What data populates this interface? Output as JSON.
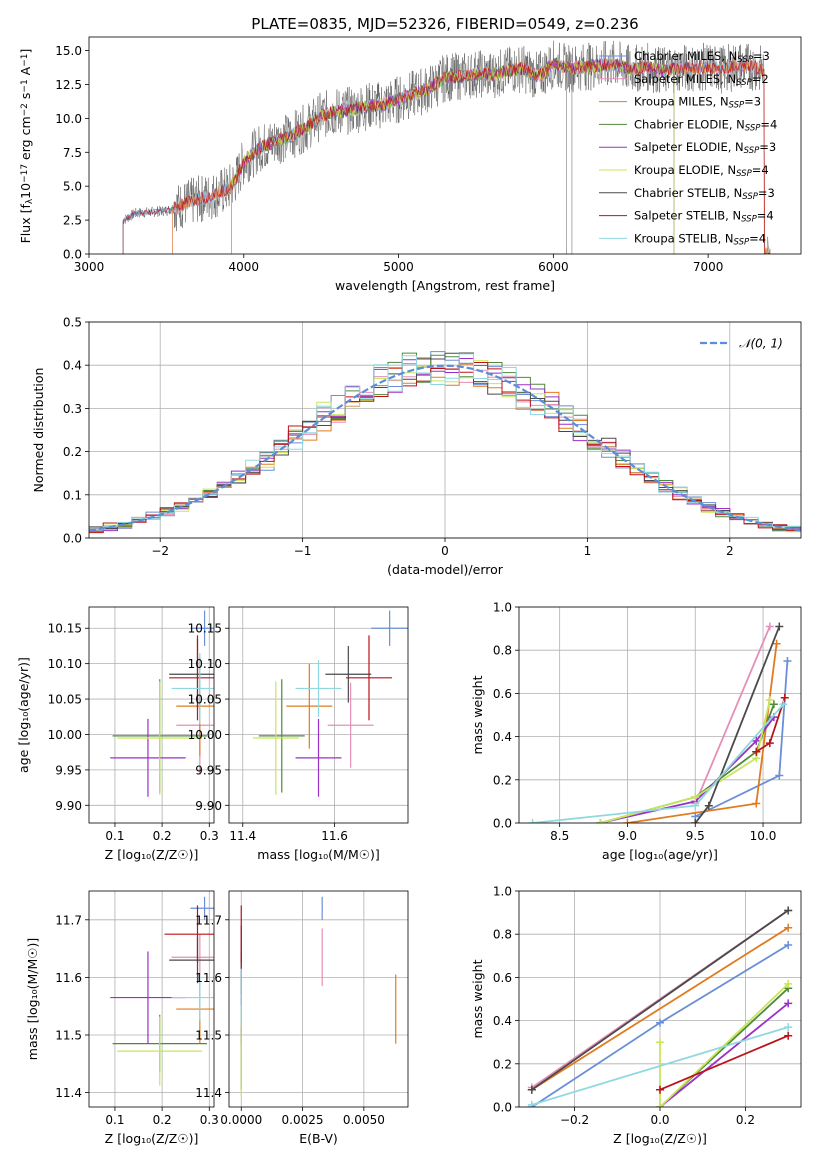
{
  "figure_title": "PLATE=0835, MJD=52326, FIBERID=0549, z=0.236",
  "colors": {
    "chabrier_miles": "#6a8fd6",
    "salpeter_miles": "#e58fb8",
    "kroupa_miles": "#e07b1f",
    "chabrier_elodie": "#4f8a3a",
    "salpeter_elodie": "#9b30c8",
    "kroupa_elodie": "#c8e65a",
    "chabrier_stelib": "#4a4a4a",
    "salpeter_stelib": "#b8141a",
    "kroupa_stelib": "#8fd8e0",
    "grid": "#b0b0b0",
    "normal_curve": "#5b8dd9"
  },
  "legend_spectrum": [
    {
      "name": "Chabrier MILES",
      "nssp": "3",
      "key": "chabrier_miles"
    },
    {
      "name": "Salpeter MILES",
      "nssp": "2",
      "key": "salpeter_miles"
    },
    {
      "name": "Kroupa MILES",
      "nssp": "3",
      "key": "kroupa_miles"
    },
    {
      "name": "Chabrier ELODIE",
      "nssp": "4",
      "key": "chabrier_elodie"
    },
    {
      "name": "Salpeter ELODIE",
      "nssp": "3",
      "key": "salpeter_elodie"
    },
    {
      "name": "Kroupa ELODIE",
      "nssp": "4",
      "key": "kroupa_elodie"
    },
    {
      "name": "Chabrier STELIB",
      "nssp": "3",
      "key": "chabrier_stelib"
    },
    {
      "name": "Salpeter STELIB",
      "nssp": "4",
      "key": "salpeter_stelib"
    },
    {
      "name": "Kroupa STELIB",
      "nssp": "4",
      "key": "kroupa_stelib"
    }
  ],
  "nssp_prefix": "N",
  "nssp_sub": "SSP",
  "chart_data": [
    {
      "id": "spectrum",
      "type": "line",
      "xlabel": "wavelength [Angstrom, rest frame]",
      "ylabel": "Flux [f",
      "xlim": [
        3000,
        7600
      ],
      "ylim": [
        0,
        16
      ],
      "xticks": [
        3000,
        4000,
        5000,
        6000,
        7000
      ],
      "yticks": [
        0.0,
        2.5,
        5.0,
        7.5,
        10.0,
        12.5,
        15.0
      ],
      "grid": false,
      "legend": "top-right",
      "spectrum_envelope": {
        "x": [
          3220,
          3300,
          3400,
          3500,
          3600,
          3700,
          3800,
          3900,
          3950,
          4000,
          4100,
          4200,
          4300,
          4400,
          4500,
          4600,
          4700,
          4800,
          4900,
          5000,
          5100,
          5200,
          5300,
          5400,
          5500,
          5600,
          5700,
          5800,
          5900,
          6000,
          6100,
          6200,
          6300,
          6400,
          6500,
          6600,
          6700,
          6800,
          6900,
          7000,
          7100,
          7200,
          7300,
          7360
        ],
        "y": [
          2.5,
          3.0,
          3.1,
          3.2,
          3.6,
          4.0,
          4.3,
          4.8,
          5.5,
          6.8,
          7.8,
          8.3,
          8.7,
          9.3,
          10.2,
          10.5,
          10.6,
          10.9,
          11.0,
          11.4,
          11.8,
          12.2,
          13.0,
          13.1,
          13.3,
          13.2,
          13.5,
          13.7,
          13.1,
          14.0,
          13.7,
          13.8,
          13.9,
          14.0,
          13.6,
          13.8,
          13.5,
          13.7,
          13.7,
          13.8,
          13.6,
          13.9,
          13.8,
          13.5
        ]
      },
      "coverage_start": {
        "chabrier_miles": 3220,
        "salpeter_miles": 3540,
        "kroupa_miles": 3540,
        "chabrier_elodie": 3920,
        "salpeter_elodie": 3920,
        "kroupa_elodie": 3920,
        "chabrier_stelib": 3220,
        "salpeter_stelib": 3220,
        "kroupa_stelib": 3220
      },
      "coverage_end": {
        "chabrier_miles": 7400,
        "salpeter_miles": 7400,
        "kroupa_miles": 7400,
        "chabrier_elodie": 6780,
        "salpeter_elodie": 6780,
        "kroupa_elodie": 6780,
        "chabrier_stelib": 7400,
        "salpeter_stelib": 7400,
        "kroupa_stelib": 7400
      }
    },
    {
      "id": "residuals",
      "type": "line",
      "xlabel": "(data-model)/error",
      "ylabel": "Normed distribution",
      "xlim": [
        -2.5,
        2.5
      ],
      "ylim": [
        0,
        0.5
      ],
      "xticks": [
        -2,
        -1,
        0,
        1,
        2
      ],
      "yticks": [
        0.0,
        0.1,
        0.2,
        0.3,
        0.4,
        0.5
      ],
      "grid": true,
      "legend": "top-right",
      "legend_label": "𝒩(0, 1)",
      "bin_width": 0.1,
      "bin_start": -2.5
    },
    {
      "id": "age_vs_Z",
      "type": "scatter",
      "xlabel": "Z [log₁₀(Z/Z☉)]",
      "ylabel": "age  [log₁₀(age/yr)]",
      "xlim": [
        0.045,
        0.31
      ],
      "ylim": [
        9.875,
        10.18
      ],
      "xticks": [
        0.1,
        0.2,
        0.3
      ],
      "yticks": [
        9.9,
        9.95,
        10.0,
        10.05,
        10.1,
        10.15
      ],
      "grid": true,
      "points": [
        {
          "key": "chabrier_miles",
          "x": 0.29,
          "y": 10.15,
          "xerr": 0.03,
          "yerr": 0.025
        },
        {
          "key": "salpeter_miles",
          "x": 0.28,
          "y": 10.013,
          "xerr": 0.05,
          "yerr": 0.07
        },
        {
          "key": "kroupa_miles",
          "x": 0.28,
          "y": 10.04,
          "xerr": 0.05,
          "yerr": 0.07
        },
        {
          "key": "chabrier_elodie",
          "x": 0.195,
          "y": 9.998,
          "xerr": 0.1,
          "yerr": 0.08
        },
        {
          "key": "salpeter_elodie",
          "x": 0.17,
          "y": 9.967,
          "xerr": 0.08,
          "yerr": 0.055
        },
        {
          "key": "kroupa_elodie",
          "x": 0.195,
          "y": 9.995,
          "xerr": 0.09,
          "yerr": 0.08
        },
        {
          "key": "chabrier_stelib",
          "x": 0.275,
          "y": 10.085,
          "xerr": 0.06,
          "yerr": 0.05
        },
        {
          "key": "salpeter_stelib",
          "x": 0.275,
          "y": 10.08,
          "xerr": 0.06,
          "yerr": 0.06
        },
        {
          "key": "kroupa_stelib",
          "x": 0.28,
          "y": 10.065,
          "xerr": 0.06,
          "yerr": 0.05
        }
      ]
    },
    {
      "id": "age_vs_mass",
      "type": "scatter",
      "xlabel": "mass [log₁₀(M/M☉)]",
      "ylabel": "",
      "xlim": [
        11.37,
        11.76
      ],
      "ylim": [
        9.875,
        10.18
      ],
      "xticks": [
        11.4,
        11.6
      ],
      "yticks": [
        9.9,
        9.95,
        10.0,
        10.05,
        10.1,
        10.15
      ],
      "grid": true,
      "points": [
        {
          "key": "chabrier_miles",
          "x": 11.72,
          "y": 10.15,
          "xerr": 0.04,
          "yerr": 0.025
        },
        {
          "key": "salpeter_miles",
          "x": 11.635,
          "y": 10.013,
          "xerr": 0.05,
          "yerr": 0.06
        },
        {
          "key": "kroupa_miles",
          "x": 11.545,
          "y": 10.04,
          "xerr": 0.05,
          "yerr": 0.06
        },
        {
          "key": "chabrier_elodie",
          "x": 11.485,
          "y": 9.998,
          "xerr": 0.05,
          "yerr": 0.08
        },
        {
          "key": "salpeter_elodie",
          "x": 11.565,
          "y": 9.967,
          "xerr": 0.05,
          "yerr": 0.055
        },
        {
          "key": "kroupa_elodie",
          "x": 11.472,
          "y": 9.995,
          "xerr": 0.05,
          "yerr": 0.08
        },
        {
          "key": "chabrier_stelib",
          "x": 11.63,
          "y": 10.085,
          "xerr": 0.05,
          "yerr": 0.04
        },
        {
          "key": "salpeter_stelib",
          "x": 11.675,
          "y": 10.08,
          "xerr": 0.05,
          "yerr": 0.06
        },
        {
          "key": "kroupa_stelib",
          "x": 11.565,
          "y": 10.065,
          "xerr": 0.05,
          "yerr": 0.04
        }
      ]
    },
    {
      "id": "weight_vs_age",
      "type": "line",
      "xlabel": "age  [log₁₀(age/yr)]",
      "ylabel": "mass weight",
      "xlim": [
        8.2,
        10.28
      ],
      "ylim": [
        0,
        1
      ],
      "xticks": [
        8.5,
        9.0,
        9.5,
        10.0
      ],
      "yticks": [
        0.0,
        0.2,
        0.4,
        0.6,
        0.8,
        1.0
      ],
      "grid": true,
      "series": [
        {
          "key": "chabrier_miles",
          "points": [
            [
              9.5,
              0.03
            ],
            [
              10.12,
              0.22
            ],
            [
              10.18,
              0.75
            ]
          ]
        },
        {
          "key": "salpeter_miles",
          "points": [
            [
              9.5,
              0.09
            ],
            [
              10.05,
              0.91
            ]
          ]
        },
        {
          "key": "kroupa_miles",
          "points": [
            [
              9.0,
              0.0
            ],
            [
              9.95,
              0.09
            ],
            [
              10.1,
              0.83
            ]
          ]
        },
        {
          "key": "chabrier_elodie",
          "points": [
            [
              8.8,
              0.0
            ],
            [
              9.5,
              0.12
            ],
            [
              9.95,
              0.33
            ],
            [
              10.08,
              0.55
            ]
          ]
        },
        {
          "key": "salpeter_elodie",
          "points": [
            [
              8.8,
              0.0
            ],
            [
              9.5,
              0.1
            ],
            [
              9.95,
              0.38
            ],
            [
              10.08,
              0.49
            ]
          ]
        },
        {
          "key": "kroupa_elodie",
          "points": [
            [
              8.8,
              0.0
            ],
            [
              9.5,
              0.12
            ],
            [
              9.95,
              0.3
            ],
            [
              10.05,
              0.57
            ]
          ]
        },
        {
          "key": "chabrier_stelib",
          "points": [
            [
              9.5,
              0.0
            ],
            [
              9.6,
              0.08
            ],
            [
              10.12,
              0.91
            ]
          ]
        },
        {
          "key": "salpeter_stelib",
          "points": [
            [
              9.95,
              0.33
            ],
            [
              10.05,
              0.37
            ],
            [
              10.16,
              0.58
            ]
          ]
        },
        {
          "key": "kroupa_stelib",
          "points": [
            [
              8.3,
              0.0
            ],
            [
              9.5,
              0.08
            ],
            [
              10.15,
              0.55
            ]
          ]
        }
      ]
    },
    {
      "id": "mass_vs_Z",
      "type": "scatter",
      "xlabel": "Z [log₁₀(Z/Z☉)]",
      "ylabel": "mass [log₁₀(M/M☉)]",
      "xlim": [
        0.045,
        0.31
      ],
      "ylim": [
        11.375,
        11.75
      ],
      "xticks": [
        0.1,
        0.2,
        0.3
      ],
      "yticks": [
        11.4,
        11.5,
        11.6,
        11.7
      ],
      "grid": true,
      "points": [
        {
          "key": "chabrier_miles",
          "x": 0.29,
          "y": 11.72,
          "xerr": 0.03,
          "yerr": 0.02
        },
        {
          "key": "salpeter_miles",
          "x": 0.28,
          "y": 11.635,
          "xerr": 0.06,
          "yerr": 0.04
        },
        {
          "key": "kroupa_miles",
          "x": 0.28,
          "y": 11.545,
          "xerr": 0.05,
          "yerr": 0.06
        },
        {
          "key": "chabrier_elodie",
          "x": 0.195,
          "y": 11.485,
          "xerr": 0.1,
          "yerr": 0.05
        },
        {
          "key": "salpeter_elodie",
          "x": 0.17,
          "y": 11.565,
          "xerr": 0.08,
          "yerr": 0.08
        },
        {
          "key": "kroupa_elodie",
          "x": 0.195,
          "y": 11.472,
          "xerr": 0.09,
          "yerr": 0.06
        },
        {
          "key": "chabrier_stelib",
          "x": 0.275,
          "y": 11.63,
          "xerr": 0.06,
          "yerr": 0.04
        },
        {
          "key": "salpeter_stelib",
          "x": 0.275,
          "y": 11.675,
          "xerr": 0.07,
          "yerr": 0.05
        },
        {
          "key": "kroupa_stelib",
          "x": 0.28,
          "y": 11.565,
          "xerr": 0.06,
          "yerr": 0.04
        }
      ]
    },
    {
      "id": "mass_vs_ebv",
      "type": "scatter",
      "xlabel": "E(B-V)",
      "ylabel": "",
      "xlim": [
        -0.0005,
        0.0068
      ],
      "ylim": [
        11.375,
        11.75
      ],
      "xticks": [
        0.0,
        0.0025,
        0.005
      ],
      "xticklabels": [
        "0.0000",
        "0.0025",
        "0.0050"
      ],
      "yticks": [
        11.4,
        11.5,
        11.6,
        11.7
      ],
      "grid": true,
      "points": [
        {
          "key": "chabrier_miles",
          "x": 0.0033,
          "y": 11.72,
          "xerr": 0.0,
          "yerr": 0.02
        },
        {
          "key": "salpeter_miles",
          "x": 0.0033,
          "y": 11.635,
          "xerr": 0.0,
          "yerr": 0.05
        },
        {
          "key": "kroupa_miles",
          "x": 0.0063,
          "y": 11.545,
          "xerr": 0.0,
          "yerr": 0.06
        },
        {
          "key": "chabrier_elodie",
          "x": 0.0,
          "y": 11.485,
          "xerr": 0.0,
          "yerr": 0.08
        },
        {
          "key": "salpeter_elodie",
          "x": 0.0,
          "y": 11.565,
          "xerr": 0.0,
          "yerr": 0.08
        },
        {
          "key": "kroupa_elodie",
          "x": 0.0,
          "y": 11.472,
          "xerr": 0.0,
          "yerr": 0.08
        },
        {
          "key": "chabrier_stelib",
          "x": 0.0,
          "y": 11.63,
          "xerr": 0.0,
          "yerr": 0.06
        },
        {
          "key": "salpeter_stelib",
          "x": 0.0,
          "y": 11.675,
          "xerr": 0.0,
          "yerr": 0.05
        },
        {
          "key": "kroupa_stelib",
          "x": 0.0,
          "y": 11.565,
          "xerr": 0.0,
          "yerr": 0.05
        }
      ]
    },
    {
      "id": "weight_vs_Z",
      "type": "line",
      "xlabel": "Z [log₁₀(Z/Z☉)]",
      "ylabel": "mass weight",
      "xlim": [
        -0.33,
        0.33
      ],
      "ylim": [
        0,
        1
      ],
      "xticks": [
        -0.2,
        0.0,
        0.2
      ],
      "yticks": [
        0.0,
        0.2,
        0.4,
        0.6,
        0.8,
        1.0
      ],
      "grid": true,
      "series": [
        {
          "key": "chabrier_miles",
          "points": [
            [
              -0.3,
              0.0
            ],
            [
              0.0,
              0.39
            ],
            [
              0.3,
              0.75
            ]
          ]
        },
        {
          "key": "salpeter_miles",
          "points": [
            [
              -0.3,
              0.09
            ],
            [
              0.3,
              0.91
            ]
          ]
        },
        {
          "key": "kroupa_miles",
          "points": [
            [
              -0.3,
              0.08
            ],
            [
              0.3,
              0.83
            ]
          ]
        },
        {
          "key": "chabrier_elodie",
          "points": [
            [
              0.0,
              0.0
            ],
            [
              0.3,
              0.55
            ]
          ]
        },
        {
          "key": "salpeter_elodie",
          "points": [
            [
              0.0,
              0.0
            ],
            [
              0.3,
              0.48
            ]
          ]
        },
        {
          "key": "kroupa_elodie",
          "points": [
            [
              0.0,
              0.3
            ],
            [
              0.0,
              0.0
            ],
            [
              0.3,
              0.57
            ]
          ]
        },
        {
          "key": "chabrier_stelib",
          "points": [
            [
              -0.3,
              0.08
            ],
            [
              0.3,
              0.91
            ]
          ]
        },
        {
          "key": "salpeter_stelib",
          "points": [
            [
              0.0,
              0.08
            ],
            [
              0.3,
              0.33
            ]
          ]
        },
        {
          "key": "kroupa_stelib",
          "points": [
            [
              -0.3,
              0.01
            ],
            [
              0.3,
              0.37
            ]
          ]
        }
      ]
    }
  ]
}
